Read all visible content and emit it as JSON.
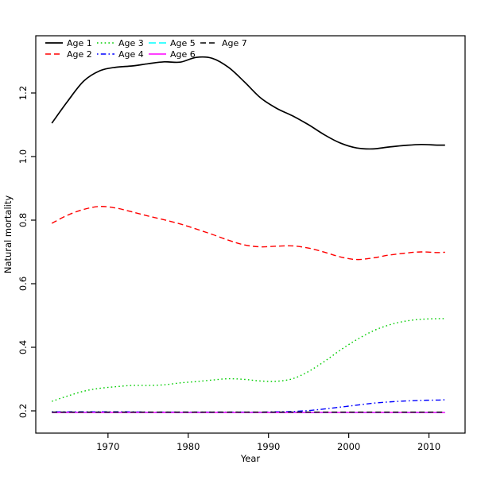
{
  "figure": {
    "background": "#FFFFFF"
  },
  "chart_data": {
    "type": "line",
    "title": "",
    "xlabel": "Year",
    "ylabel": "Natural mortality",
    "xlim": [
      1961,
      2014.5
    ],
    "ylim": [
      0.13,
      1.38
    ],
    "xticks": [
      1970,
      1980,
      1990,
      2000,
      2010
    ],
    "yticks": [
      0.2,
      0.4,
      0.6,
      0.8,
      1.0,
      1.2
    ],
    "grid": false,
    "legend": {
      "position": "top-left",
      "ncol": 4,
      "fill": "column-wise"
    },
    "x": [
      1963,
      1965,
      1967,
      1969,
      1971,
      1973,
      1975,
      1977,
      1979,
      1981,
      1983,
      1985,
      1987,
      1989,
      1991,
      1993,
      1995,
      1997,
      1999,
      2001,
      2003,
      2005,
      2007,
      2009,
      2011,
      2012
    ],
    "series": [
      {
        "name": "Age 1",
        "color": "#000000",
        "linetype": "solid",
        "dash": "",
        "width": 1.7,
        "values": [
          1.105,
          1.175,
          1.238,
          1.27,
          1.281,
          1.285,
          1.292,
          1.298,
          1.297,
          1.312,
          1.309,
          1.281,
          1.235,
          1.185,
          1.152,
          1.128,
          1.1,
          1.068,
          1.042,
          1.027,
          1.024,
          1.03,
          1.035,
          1.038,
          1.036,
          1.036
        ]
      },
      {
        "name": "Age 2",
        "color": "#FF0000",
        "linetype": "dashed",
        "dash": "7,4",
        "width": 1.4,
        "values": [
          0.79,
          0.816,
          0.834,
          0.843,
          0.838,
          0.826,
          0.813,
          0.801,
          0.788,
          0.772,
          0.755,
          0.737,
          0.722,
          0.716,
          0.718,
          0.719,
          0.712,
          0.699,
          0.684,
          0.676,
          0.681,
          0.69,
          0.696,
          0.7,
          0.698,
          0.699
        ]
      },
      {
        "name": "Age 3",
        "color": "#00CD00",
        "linetype": "dotted",
        "dash": "1.6,3.2",
        "width": 1.4,
        "values": [
          0.23,
          0.247,
          0.262,
          0.271,
          0.276,
          0.28,
          0.28,
          0.282,
          0.288,
          0.292,
          0.297,
          0.301,
          0.299,
          0.294,
          0.293,
          0.301,
          0.324,
          0.356,
          0.392,
          0.424,
          0.451,
          0.47,
          0.482,
          0.488,
          0.49,
          0.49
        ]
      },
      {
        "name": "Age 4",
        "color": "#0000FF",
        "linetype": "dotdash",
        "dash": "1.6,3.2,6.5,3.2",
        "width": 1.4,
        "values": [
          0.197,
          0.197,
          0.197,
          0.197,
          0.197,
          0.197,
          0.196,
          0.196,
          0.196,
          0.196,
          0.196,
          0.196,
          0.196,
          0.196,
          0.197,
          0.198,
          0.201,
          0.206,
          0.212,
          0.218,
          0.224,
          0.228,
          0.231,
          0.233,
          0.234,
          0.235
        ]
      },
      {
        "name": "Age 5",
        "color": "#00FFFF",
        "linetype": "longdash",
        "dash": "9,4",
        "width": 1.4,
        "values": [
          0.195,
          0.195,
          0.195,
          0.195,
          0.195,
          0.195,
          0.195,
          0.195,
          0.195,
          0.195,
          0.195,
          0.195,
          0.195,
          0.195,
          0.195,
          0.195,
          0.195,
          0.195,
          0.195,
          0.195,
          0.195,
          0.195,
          0.195,
          0.195,
          0.195,
          0.195
        ]
      },
      {
        "name": "Age 6",
        "color": "#FF00FF",
        "linetype": "solid",
        "dash": "",
        "width": 1.4,
        "values": [
          0.195,
          0.195,
          0.195,
          0.195,
          0.195,
          0.195,
          0.195,
          0.195,
          0.195,
          0.195,
          0.195,
          0.195,
          0.195,
          0.195,
          0.195,
          0.195,
          0.195,
          0.195,
          0.195,
          0.195,
          0.195,
          0.195,
          0.195,
          0.195,
          0.195,
          0.195
        ]
      },
      {
        "name": "Age 7",
        "color": "#000000",
        "linetype": "dashed",
        "dash": "7,4",
        "width": 1.4,
        "values": [
          0.196,
          0.196,
          0.196,
          0.196,
          0.196,
          0.196,
          0.196,
          0.196,
          0.196,
          0.196,
          0.196,
          0.196,
          0.196,
          0.196,
          0.196,
          0.196,
          0.196,
          0.196,
          0.196,
          0.196,
          0.196,
          0.196,
          0.196,
          0.196,
          0.196,
          0.196
        ]
      }
    ]
  }
}
